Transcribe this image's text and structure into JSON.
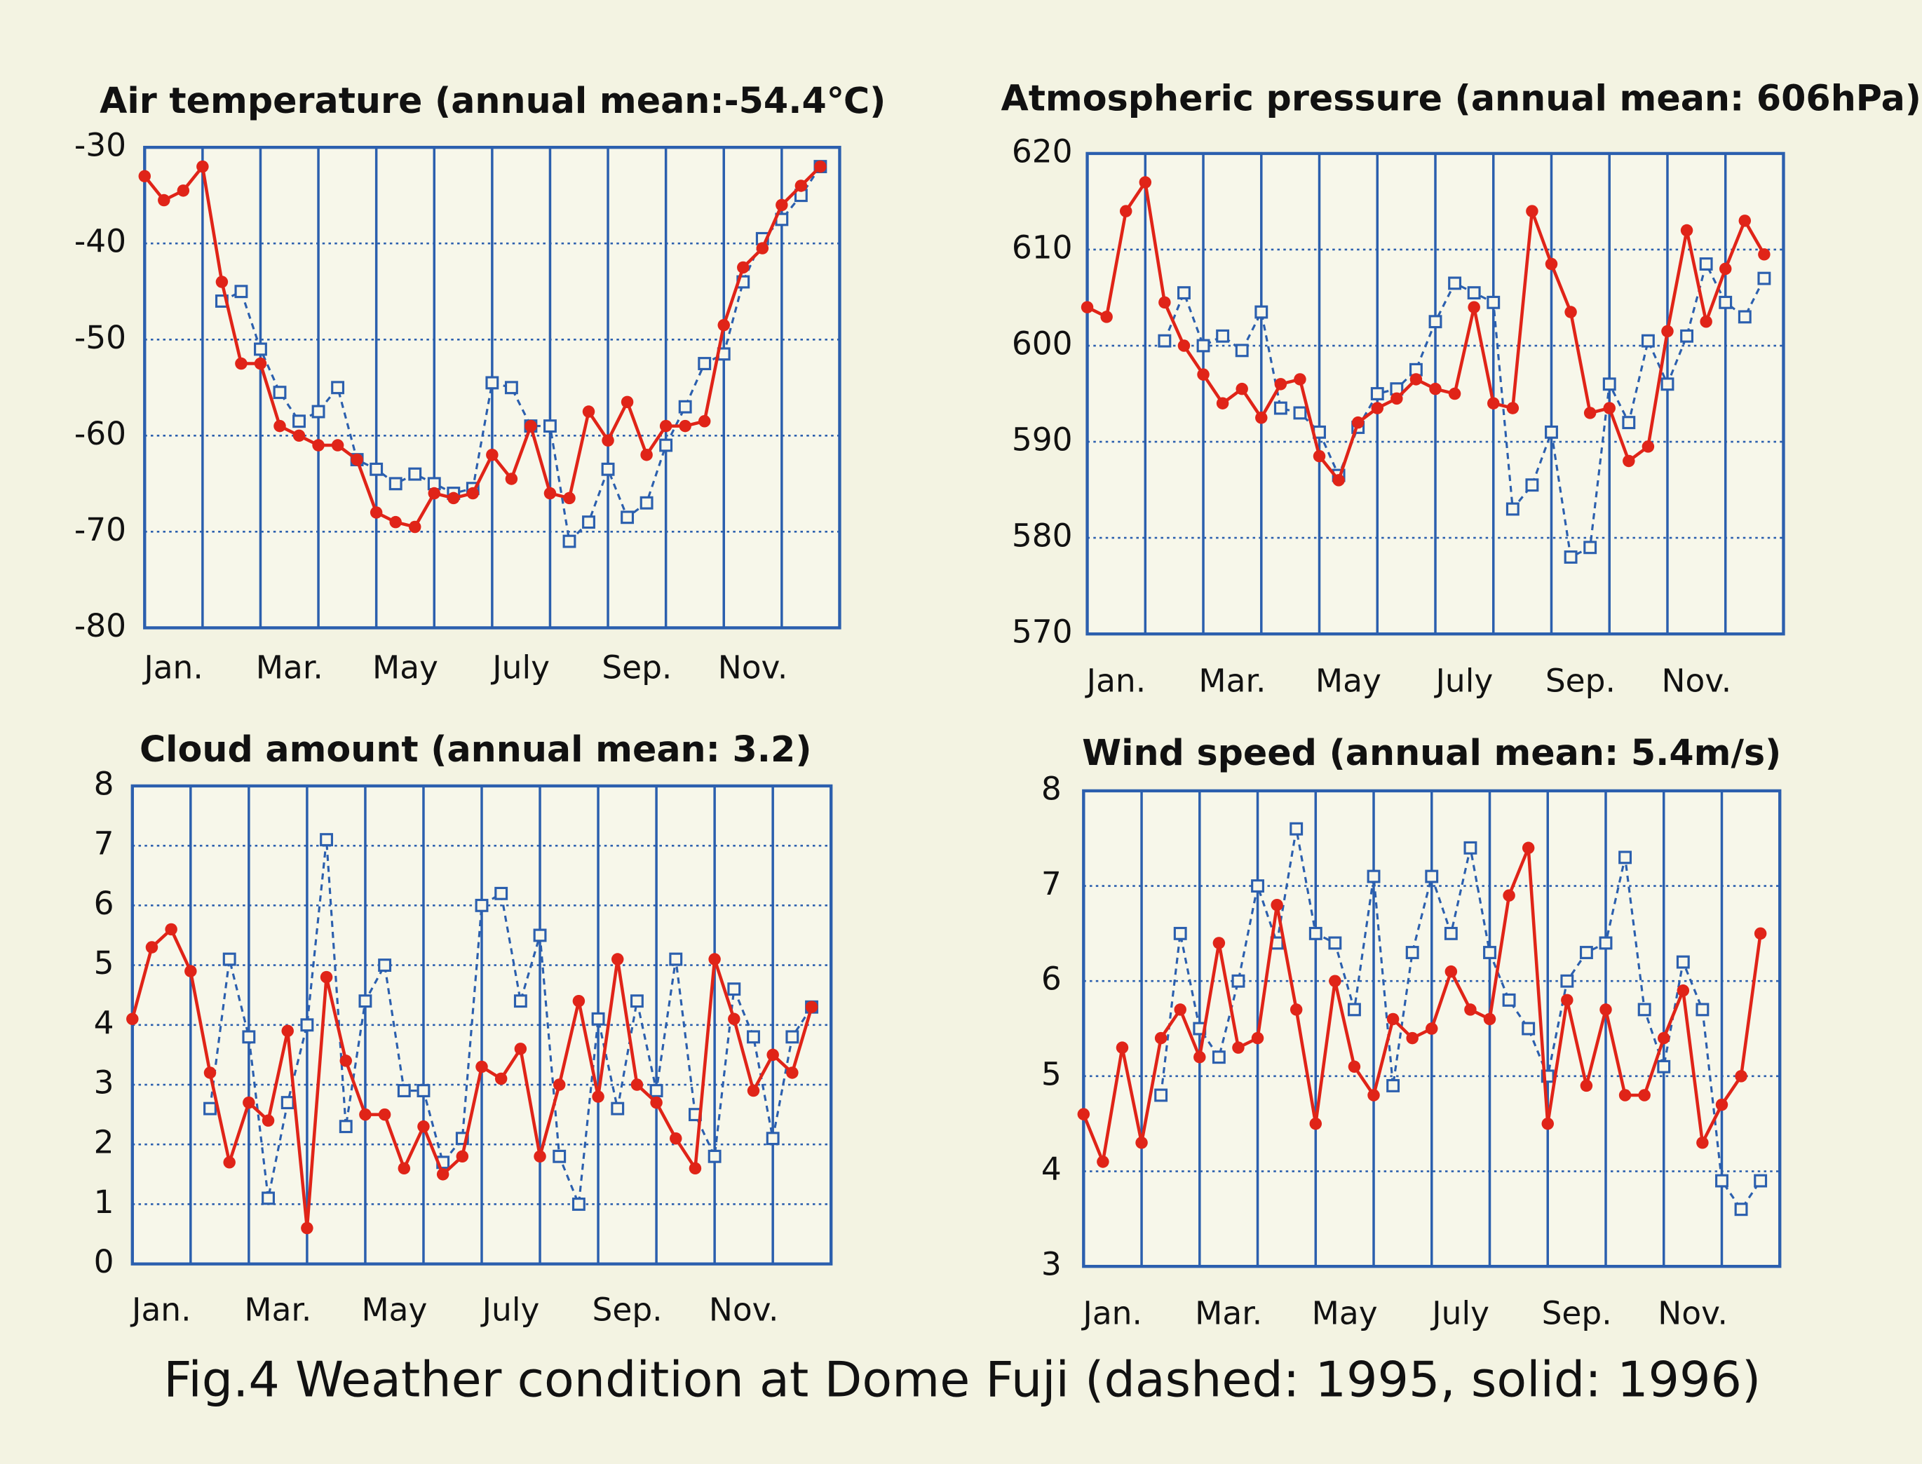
{
  "chart_data": [
    {
      "type": "line",
      "title": "Air temperature  (annual mean:-54.4℃)",
      "categories": [
        "Jan.",
        null,
        null,
        null,
        null,
        null,
        "Mar.",
        null,
        null,
        null,
        null,
        null,
        "May",
        null,
        null,
        null,
        null,
        null,
        "July",
        null,
        null,
        null,
        null,
        null,
        "Sep.",
        null,
        null,
        null,
        null,
        null,
        "Nov.",
        null,
        null,
        null,
        null,
        null
      ],
      "ylim": [
        -80,
        -30
      ],
      "yticks": [
        -80,
        -70,
        -60,
        -50,
        -40,
        -30
      ],
      "grid": true,
      "series": [
        {
          "color": "#2b5fae",
          "line_style": "dashed",
          "marker": "square",
          "values": [
            null,
            null,
            null,
            null,
            -46,
            -45,
            -51,
            -55.5,
            -58.5,
            -57.5,
            -55,
            -62.5,
            -63.5,
            -65,
            -64,
            -65,
            -66,
            -65.5,
            -54.5,
            -55,
            -59,
            -59,
            -71,
            -69,
            -63.5,
            -68.5,
            -67,
            -61,
            -57,
            -52.5,
            -51.5,
            -44,
            -39.5,
            -37.5,
            -35,
            -32
          ]
        },
        {
          "color": "#e02418",
          "line_style": "solid",
          "marker": "circle",
          "values": [
            -33,
            -35.5,
            -34.5,
            -32,
            -44,
            -52.5,
            -52.5,
            -59,
            -60,
            -61,
            -61,
            -62.5,
            -68,
            -69,
            -69.5,
            -66,
            -66.5,
            -66,
            -62,
            -64.5,
            -59,
            -66,
            -66.5,
            -57.5,
            -60.5,
            -56.5,
            -62,
            -59,
            -59,
            -58.5,
            -48.5,
            -42.5,
            -40.5,
            -36,
            -34,
            -32
          ]
        }
      ]
    },
    {
      "type": "line",
      "title": "Atmospheric pressure  (annual mean: 606hPa)",
      "categories": [
        "Jan.",
        null,
        null,
        null,
        null,
        null,
        "Mar.",
        null,
        null,
        null,
        null,
        null,
        "May",
        null,
        null,
        null,
        null,
        null,
        "July",
        null,
        null,
        null,
        null,
        null,
        "Sep.",
        null,
        null,
        null,
        null,
        null,
        "Nov.",
        null,
        null,
        null,
        null,
        null
      ],
      "ylim": [
        570,
        620
      ],
      "yticks": [
        570,
        580,
        590,
        600,
        610,
        620
      ],
      "grid": true,
      "series": [
        {
          "color": "#2b5fae",
          "line_style": "dashed",
          "marker": "square",
          "values": [
            null,
            null,
            null,
            null,
            600.5,
            605.5,
            600,
            601,
            599.5,
            603.5,
            593.5,
            593,
            591,
            586.5,
            591.5,
            595,
            595.5,
            597.5,
            602.5,
            606.5,
            605.5,
            604.5,
            583,
            585.5,
            591,
            578,
            579,
            596,
            592,
            600.5,
            596,
            601,
            608.5,
            604.5,
            603,
            607
          ]
        },
        {
          "color": "#e02418",
          "line_style": "solid",
          "marker": "circle",
          "values": [
            604,
            603,
            614,
            617,
            604.5,
            600,
            597,
            594,
            595.5,
            592.5,
            596,
            596.5,
            588.5,
            586,
            592,
            593.5,
            594.5,
            596.5,
            595.5,
            595,
            604,
            594,
            593.5,
            614,
            608.5,
            603.5,
            593,
            593.5,
            588,
            589.5,
            601.5,
            612,
            602.5,
            608,
            613,
            609.5
          ]
        }
      ]
    },
    {
      "type": "line",
      "title": "Cloud amount (annual mean: 3.2)",
      "categories": [
        "Jan.",
        null,
        null,
        null,
        null,
        null,
        "Mar.",
        null,
        null,
        null,
        null,
        null,
        "May",
        null,
        null,
        null,
        null,
        null,
        "July",
        null,
        null,
        null,
        null,
        null,
        "Sep.",
        null,
        null,
        null,
        null,
        null,
        "Nov.",
        null,
        null,
        null,
        null,
        null
      ],
      "ylim": [
        0,
        8
      ],
      "yticks": [
        0,
        1,
        2,
        3,
        4,
        5,
        6,
        7,
        8
      ],
      "grid": true,
      "series": [
        {
          "color": "#2b5fae",
          "line_style": "dashed",
          "marker": "square",
          "values": [
            null,
            null,
            null,
            null,
            2.6,
            5.1,
            3.8,
            1.1,
            2.7,
            4.0,
            7.1,
            2.3,
            4.4,
            5.0,
            2.9,
            2.9,
            1.7,
            2.1,
            6.0,
            6.2,
            4.4,
            5.5,
            1.8,
            1.0,
            4.1,
            2.6,
            4.4,
            2.9,
            5.1,
            2.5,
            1.8,
            4.6,
            3.8,
            2.1,
            3.8,
            4.3
          ]
        },
        {
          "color": "#e02418",
          "line_style": "solid",
          "marker": "circle",
          "values": [
            4.1,
            5.3,
            5.6,
            4.9,
            3.2,
            1.7,
            2.7,
            2.4,
            3.9,
            0.6,
            4.8,
            3.4,
            2.5,
            2.5,
            1.6,
            2.3,
            1.5,
            1.8,
            3.3,
            3.1,
            3.6,
            1.8,
            3.0,
            4.4,
            2.8,
            5.1,
            3.0,
            2.7,
            2.1,
            1.6,
            5.1,
            4.1,
            2.9,
            3.5,
            3.2,
            4.3
          ]
        }
      ]
    },
    {
      "type": "line",
      "title": "Wind speed  (annual mean: 5.4m/s)",
      "categories": [
        "Jan.",
        null,
        null,
        null,
        null,
        null,
        "Mar.",
        null,
        null,
        null,
        null,
        null,
        "May",
        null,
        null,
        null,
        null,
        null,
        "July",
        null,
        null,
        null,
        null,
        null,
        "Sep.",
        null,
        null,
        null,
        null,
        null,
        "Nov.",
        null,
        null,
        null,
        null,
        null
      ],
      "ylim": [
        3,
        8
      ],
      "yticks": [
        3,
        4,
        5,
        6,
        7,
        8
      ],
      "grid": true,
      "series": [
        {
          "color": "#2b5fae",
          "line_style": "dashed",
          "marker": "square",
          "values": [
            null,
            null,
            null,
            null,
            4.8,
            6.5,
            5.5,
            5.2,
            6.0,
            7.0,
            6.4,
            7.6,
            6.5,
            6.4,
            5.7,
            7.1,
            4.9,
            6.3,
            7.1,
            6.5,
            7.4,
            6.3,
            5.8,
            5.5,
            5.0,
            6.0,
            6.3,
            6.4,
            7.3,
            5.7,
            5.1,
            6.2,
            5.7,
            3.9,
            3.6,
            3.9
          ]
        },
        {
          "color": "#e02418",
          "line_style": "solid",
          "marker": "circle",
          "values": [
            4.6,
            4.1,
            5.3,
            4.3,
            5.4,
            5.7,
            5.2,
            6.4,
            5.3,
            5.4,
            6.8,
            5.7,
            4.5,
            6.0,
            5.1,
            4.8,
            5.6,
            5.4,
            5.5,
            6.1,
            5.7,
            5.6,
            6.9,
            7.4,
            4.5,
            5.8,
            4.9,
            5.7,
            4.8,
            4.8,
            5.4,
            5.9,
            4.3,
            4.7,
            5.0,
            6.5
          ]
        }
      ]
    }
  ],
  "caption": "Fig.4 Weather condition at Dome Fuji (dashed: 1995, solid: 1996)"
}
